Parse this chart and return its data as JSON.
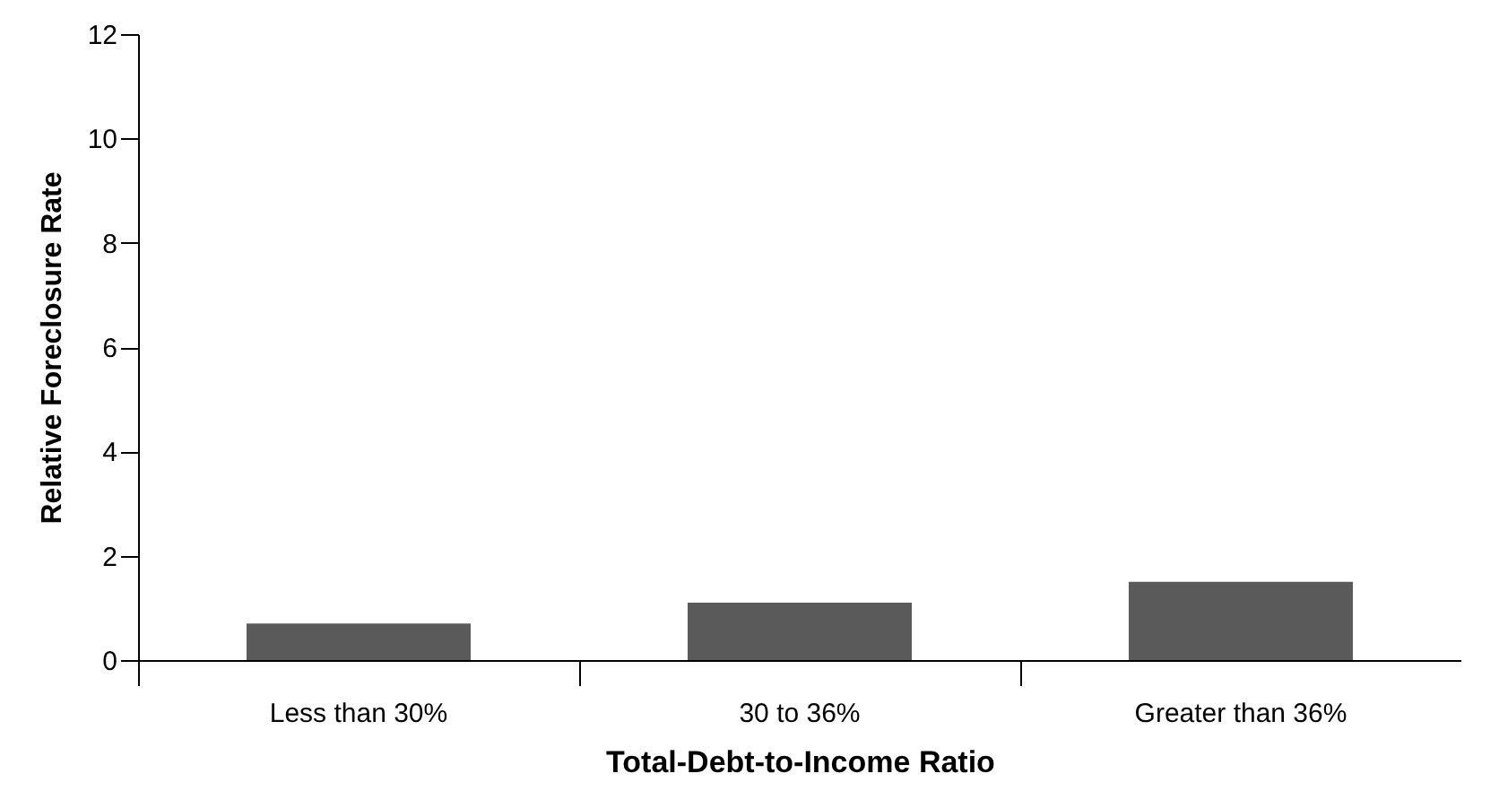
{
  "chart_data": {
    "type": "bar",
    "xlabel": "Total-Debt-to-Income Ratio",
    "ylabel": "Relative Foreclosure Rate",
    "categories": [
      "Less than 30%",
      "30 to 36%",
      "Greater than 36%"
    ],
    "values": [
      0.7,
      1.1,
      1.5
    ],
    "color": "#5a5a5a",
    "ylim": [
      0,
      12
    ],
    "yticks": [
      0,
      2,
      4,
      6,
      8,
      10,
      12
    ],
    "grid": false
  }
}
